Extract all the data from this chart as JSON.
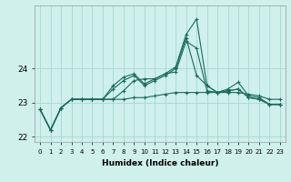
{
  "xlabel": "Humidex (Indice chaleur)",
  "bg_color": "#cff0eb",
  "grid_color": "#a8d8d0",
  "line_color": "#1a6b5a",
  "x_values": [
    0,
    1,
    2,
    3,
    4,
    5,
    6,
    7,
    8,
    9,
    10,
    11,
    12,
    13,
    14,
    15,
    16,
    17,
    18,
    19,
    20,
    21,
    22,
    23
  ],
  "series": [
    [
      22.8,
      22.2,
      22.85,
      23.1,
      23.1,
      23.1,
      23.1,
      23.1,
      23.1,
      23.15,
      23.15,
      23.2,
      23.25,
      23.3,
      23.3,
      23.3,
      23.3,
      23.3,
      23.3,
      23.3,
      23.25,
      23.2,
      23.1,
      23.1
    ],
    [
      22.8,
      22.2,
      22.85,
      23.1,
      23.1,
      23.1,
      23.1,
      23.5,
      23.75,
      23.85,
      23.55,
      23.7,
      23.85,
      24.05,
      25.0,
      25.45,
      23.5,
      23.3,
      23.4,
      23.6,
      23.2,
      23.15,
      22.95,
      22.95
    ],
    [
      22.8,
      22.2,
      22.85,
      23.1,
      23.1,
      23.1,
      23.1,
      23.1,
      23.35,
      23.65,
      23.7,
      23.7,
      23.85,
      23.9,
      24.8,
      24.6,
      23.35,
      23.3,
      23.35,
      23.4,
      23.15,
      23.1,
      22.95,
      22.95
    ],
    [
      22.8,
      22.2,
      22.85,
      23.1,
      23.1,
      23.1,
      23.1,
      23.4,
      23.65,
      23.8,
      23.5,
      23.65,
      23.8,
      24.0,
      24.9,
      23.8,
      23.5,
      23.3,
      23.35,
      23.4,
      23.15,
      23.1,
      22.95,
      22.95
    ]
  ],
  "ylim": [
    21.85,
    25.85
  ],
  "yticks": [
    22,
    23,
    24
  ],
  "xticks": [
    0,
    1,
    2,
    3,
    4,
    5,
    6,
    7,
    8,
    9,
    10,
    11,
    12,
    13,
    14,
    15,
    16,
    17,
    18,
    19,
    20,
    21,
    22,
    23
  ]
}
